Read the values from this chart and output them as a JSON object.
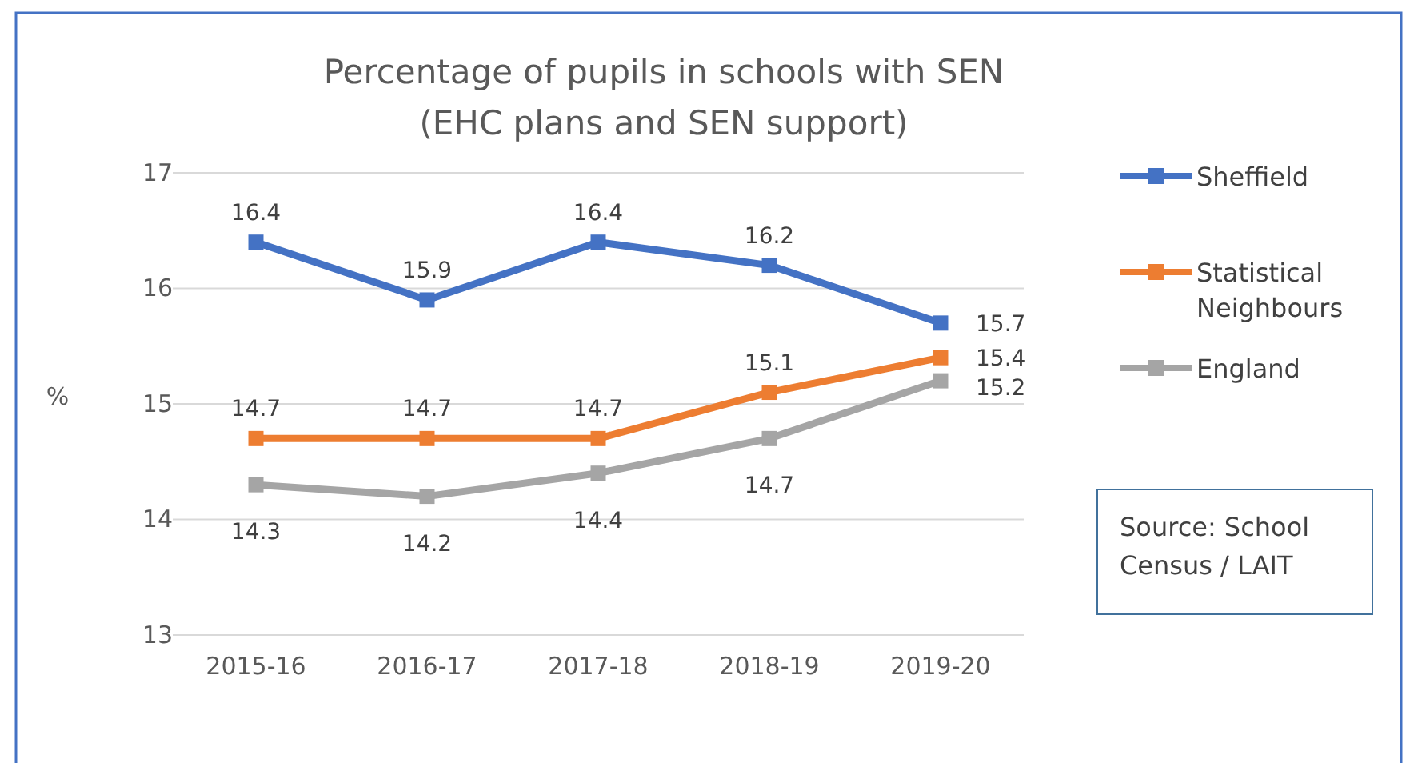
{
  "chart_data": {
    "type": "line",
    "title": "Percentage of pupils in schools with SEN\n(EHC plans and SEN support)",
    "ylabel": "%",
    "categories": [
      "2015-16",
      "2016-17",
      "2017-18",
      "2018-19",
      "2019-20"
    ],
    "series": [
      {
        "name": "Sheffield",
        "color": "#4472c4",
        "values": [
          16.4,
          15.9,
          16.4,
          16.2,
          15.7
        ]
      },
      {
        "name": "Statistical Neighbours",
        "color": "#ed7d31",
        "values": [
          14.7,
          14.7,
          14.7,
          15.1,
          15.4
        ]
      },
      {
        "name": "England",
        "color": "#a5a5a5",
        "values": [
          14.3,
          14.2,
          14.4,
          14.7,
          15.2
        ]
      }
    ],
    "ylim": [
      13,
      17
    ],
    "yticks": [
      13,
      14,
      15,
      16,
      17
    ],
    "grid": "y",
    "legend": "right",
    "marker": "square",
    "line_style": "solid",
    "data_labels": true,
    "annotations": [
      "Source: School Census / LAIT"
    ]
  }
}
